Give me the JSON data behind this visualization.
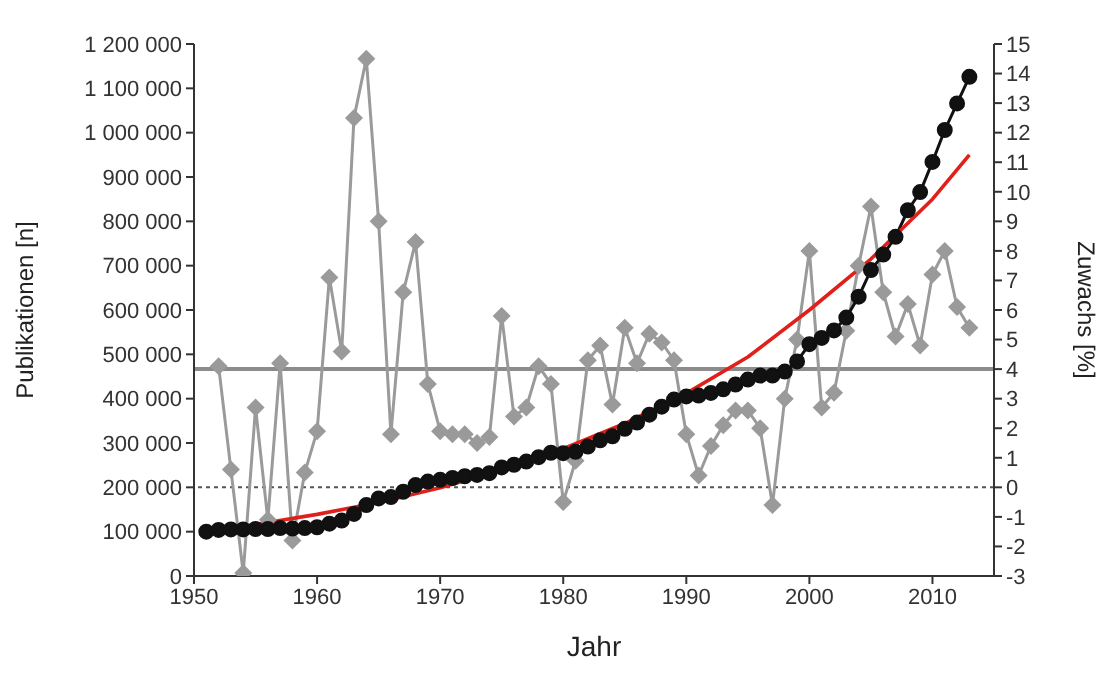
{
  "chart_data": {
    "type": "line",
    "xlabel": "Jahr",
    "ylabel": "Publikationen [n]",
    "y2label": "Zuwachs [%]",
    "xlim": [
      1950,
      2015
    ],
    "xticks": [
      1950,
      1960,
      1970,
      1980,
      1990,
      2000,
      2010
    ],
    "ylim": [
      0,
      1200000
    ],
    "yticks": [
      0,
      {
        "value": 100000,
        "label": "100 000"
      },
      {
        "value": 200000,
        "label": "200 000"
      },
      {
        "value": 300000,
        "label": "300 000"
      },
      {
        "value": 400000,
        "label": "400 000"
      },
      {
        "value": 500000,
        "label": "500 000"
      },
      {
        "value": 600000,
        "label": "600 000"
      },
      {
        "value": 700000,
        "label": "700 000"
      },
      {
        "value": 800000,
        "label": "800 000"
      },
      {
        "value": 900000,
        "label": "900 000"
      },
      {
        "value": 1000000,
        "label": "1 000 000"
      },
      {
        "value": 1100000,
        "label": "1 100 000"
      },
      {
        "value": 1200000,
        "label": "1 200 000"
      }
    ],
    "y2lim": [
      -3,
      15
    ],
    "y2ticks": [
      -3,
      -2,
      -1,
      0,
      1,
      2,
      3,
      4,
      5,
      6,
      7,
      8,
      9,
      10,
      11,
      12,
      13,
      14,
      15
    ],
    "grid": false,
    "legend": false,
    "ref_lines": [
      {
        "axis": "y2",
        "value": 4,
        "color": "#8c8c8c",
        "line_style": "solid"
      },
      {
        "axis": "y2",
        "value": 0,
        "color": "#555555",
        "line_style": "dotted"
      }
    ],
    "series": [
      {
        "type": "line",
        "axis": "y2",
        "color": "#9a9a9a",
        "marker": "diamond",
        "x": [
          1952,
          1953,
          1954,
          1955,
          1956,
          1957,
          1958,
          1959,
          1960,
          1961,
          1962,
          1963,
          1964,
          1965,
          1966,
          1967,
          1968,
          1969,
          1970,
          1971,
          1972,
          1973,
          1974,
          1975,
          1976,
          1977,
          1978,
          1979,
          1980,
          1981,
          1982,
          1983,
          1984,
          1985,
          1986,
          1987,
          1988,
          1989,
          1990,
          1991,
          1992,
          1993,
          1994,
          1995,
          1996,
          1997,
          1998,
          1999,
          2000,
          2001,
          2002,
          2003,
          2004,
          2005,
          2006,
          2007,
          2008,
          2009,
          2010,
          2011,
          2012,
          2013
        ],
        "values": [
          4.1,
          0.6,
          -2.9,
          2.7,
          -1.1,
          4.2,
          -1.8,
          0.5,
          1.9,
          7.1,
          4.6,
          12.5,
          14.5,
          9.0,
          1.8,
          6.6,
          8.3,
          3.5,
          1.9,
          1.8,
          1.8,
          1.5,
          1.7,
          5.8,
          2.4,
          2.7,
          4.1,
          3.5,
          -0.5,
          0.9,
          4.3,
          4.8,
          2.8,
          5.4,
          4.2,
          5.2,
          4.9,
          4.3,
          1.8,
          0.4,
          1.4,
          2.1,
          2.6,
          2.6,
          2.0,
          -0.6,
          3.0,
          5.0,
          8.0,
          2.7,
          3.2,
          5.3,
          7.5,
          9.5,
          6.6,
          5.1,
          6.2,
          4.8,
          7.2,
          8.0,
          6.1,
          5.4
        ]
      },
      {
        "type": "line",
        "color": "#111111",
        "marker": "circle",
        "x": [
          1951,
          1952,
          1953,
          1954,
          1955,
          1956,
          1957,
          1958,
          1959,
          1960,
          1961,
          1962,
          1963,
          1964,
          1965,
          1966,
          1967,
          1968,
          1969,
          1970,
          1971,
          1972,
          1973,
          1974,
          1975,
          1976,
          1977,
          1978,
          1979,
          1980,
          1981,
          1982,
          1983,
          1984,
          1985,
          1986,
          1987,
          1988,
          1989,
          1990,
          1991,
          1992,
          1993,
          1994,
          1995,
          1996,
          1997,
          1998,
          1999,
          2000,
          2001,
          2002,
          2003,
          2004,
          2005,
          2006,
          2007,
          2008,
          2009,
          2010,
          2011,
          2012,
          2013
        ],
        "values": [
          100000,
          104000,
          105000,
          105000,
          106000,
          106000,
          108000,
          107000,
          108000,
          110000,
          118000,
          125000,
          140000,
          160000,
          175000,
          178000,
          190000,
          205000,
          213000,
          217000,
          221000,
          225000,
          228000,
          232000,
          245000,
          251000,
          258000,
          268000,
          278000,
          277000,
          280000,
          292000,
          306000,
          315000,
          332000,
          346000,
          364000,
          382000,
          398000,
          405000,
          407000,
          413000,
          421000,
          432000,
          443000,
          452000,
          452000,
          461000,
          484000,
          523000,
          537000,
          554000,
          583000,
          630000,
          690000,
          725000,
          765000,
          825000,
          866000,
          934000,
          1006000,
          1066000,
          1126000
        ]
      },
      {
        "type": "line",
        "color": "#e0201b",
        "marker": "none",
        "x": [
          1951,
          1955,
          1960,
          1965,
          1970,
          1975,
          1980,
          1985,
          1990,
          1995,
          2000,
          2005,
          2010,
          2013
        ],
        "values": [
          100000,
          116000,
          139000,
          166000,
          199000,
          239000,
          287000,
          344000,
          412000,
          494000,
          600000,
          715000,
          850000,
          950000
        ]
      }
    ]
  }
}
